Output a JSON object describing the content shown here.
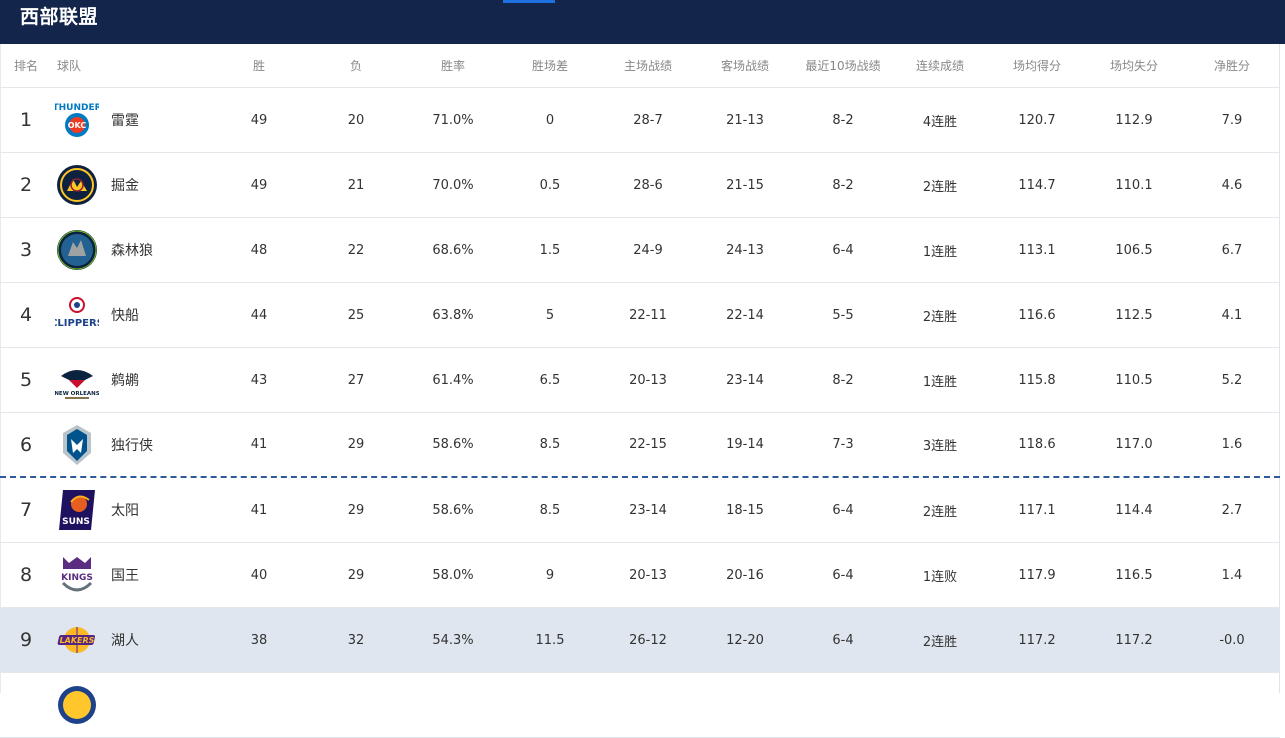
{
  "header": {
    "title": "西部联盟"
  },
  "columns": {
    "rank": "排名",
    "team": "球队",
    "wins": "胜",
    "losses": "负",
    "pct": "胜率",
    "gb": "胜场差",
    "home": "主场战绩",
    "away": "客场战绩",
    "last10": "最近10场战绩",
    "streak": "连续成绩",
    "ppg": "场均得分",
    "opp_ppg": "场均失分",
    "diff": "净胜分"
  },
  "teams": [
    {
      "rank": "1",
      "name": "雷霆",
      "w": "49",
      "l": "20",
      "pct": "71.0%",
      "gb": "0",
      "home": "28-7",
      "away": "21-13",
      "l10": "8-2",
      "streak": "4连胜",
      "ppg": "120.7",
      "opp": "112.9",
      "diff": "7.9",
      "logo": "thunder-logo",
      "color": "#007ac1"
    },
    {
      "rank": "2",
      "name": "掘金",
      "w": "49",
      "l": "21",
      "pct": "70.0%",
      "gb": "0.5",
      "home": "28-6",
      "away": "21-15",
      "l10": "8-2",
      "streak": "2连胜",
      "ppg": "114.7",
      "opp": "110.1",
      "diff": "4.6",
      "logo": "nuggets-logo",
      "color": "#0e2240"
    },
    {
      "rank": "3",
      "name": "森林狼",
      "w": "48",
      "l": "22",
      "pct": "68.6%",
      "gb": "1.5",
      "home": "24-9",
      "away": "24-13",
      "l10": "6-4",
      "streak": "1连胜",
      "ppg": "113.1",
      "opp": "106.5",
      "diff": "6.7",
      "logo": "timberwolves-logo",
      "color": "#0c2340"
    },
    {
      "rank": "4",
      "name": "快船",
      "w": "44",
      "l": "25",
      "pct": "63.8%",
      "gb": "5",
      "home": "22-11",
      "away": "22-14",
      "l10": "5-5",
      "streak": "2连胜",
      "ppg": "116.6",
      "opp": "112.5",
      "diff": "4.1",
      "logo": "clippers-logo",
      "color": "#1d428a"
    },
    {
      "rank": "5",
      "name": "鹈鹕",
      "w": "43",
      "l": "27",
      "pct": "61.4%",
      "gb": "6.5",
      "home": "20-13",
      "away": "23-14",
      "l10": "8-2",
      "streak": "1连胜",
      "ppg": "115.8",
      "opp": "110.5",
      "diff": "5.2",
      "logo": "pelicans-logo",
      "color": "#0c2340"
    },
    {
      "rank": "6",
      "name": "独行侠",
      "w": "41",
      "l": "29",
      "pct": "58.6%",
      "gb": "8.5",
      "home": "22-15",
      "away": "19-14",
      "l10": "7-3",
      "streak": "3连胜",
      "ppg": "118.6",
      "opp": "117.0",
      "diff": "1.6",
      "logo": "mavericks-logo",
      "color": "#00538c"
    },
    {
      "rank": "7",
      "name": "太阳",
      "w": "41",
      "l": "29",
      "pct": "58.6%",
      "gb": "8.5",
      "home": "23-14",
      "away": "18-15",
      "l10": "6-4",
      "streak": "2连胜",
      "ppg": "117.1",
      "opp": "114.4",
      "diff": "2.7",
      "logo": "suns-logo",
      "color": "#1d1160"
    },
    {
      "rank": "8",
      "name": "国王",
      "w": "40",
      "l": "29",
      "pct": "58.0%",
      "gb": "9",
      "home": "20-13",
      "away": "20-16",
      "l10": "6-4",
      "streak": "1连败",
      "ppg": "117.9",
      "opp": "116.5",
      "diff": "1.4",
      "logo": "kings-logo",
      "color": "#5a2d81"
    },
    {
      "rank": "9",
      "name": "湖人",
      "w": "38",
      "l": "32",
      "pct": "54.3%",
      "gb": "11.5",
      "home": "26-12",
      "away": "12-20",
      "l10": "6-4",
      "streak": "2连胜",
      "ppg": "117.2",
      "opp": "117.2",
      "diff": "-0.0",
      "logo": "lakers-logo",
      "color": "#552583"
    },
    {
      "rank": "",
      "name": "",
      "w": "",
      "l": "",
      "pct": "",
      "gb": "",
      "home": "",
      "away": "",
      "l10": "",
      "streak": "",
      "ppg": "",
      "opp": "",
      "diff": "",
      "logo": "warriors-logo",
      "color": "#1d428a"
    }
  ],
  "colors": {
    "header_bg": "#14254b",
    "accent": "#1e6fe0",
    "highlight_row": "#dfe6ef",
    "playoff_line": "#2d5a9a"
  }
}
